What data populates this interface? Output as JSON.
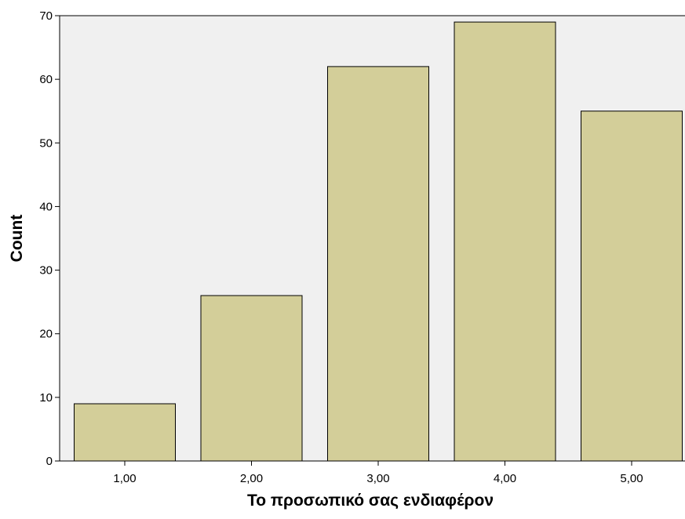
{
  "chart_data": {
    "type": "bar",
    "categories": [
      "1,00",
      "2,00",
      "3,00",
      "4,00",
      "5,00"
    ],
    "values": [
      9,
      26,
      62,
      69,
      55
    ],
    "title": "",
    "xlabel": "Το προσωπικό σας ενδιαφέρον",
    "ylabel": "Count",
    "ylim": [
      0,
      70
    ],
    "yticks": [
      "0",
      "10",
      "20",
      "30",
      "40",
      "50",
      "60",
      "70"
    ],
    "grid": false,
    "legend": "none",
    "colors": {
      "bar_fill": "#d3ce99",
      "bar_edge": "#000000",
      "plot_background": "#f0f0f0",
      "page_background": "#ffffff"
    }
  }
}
